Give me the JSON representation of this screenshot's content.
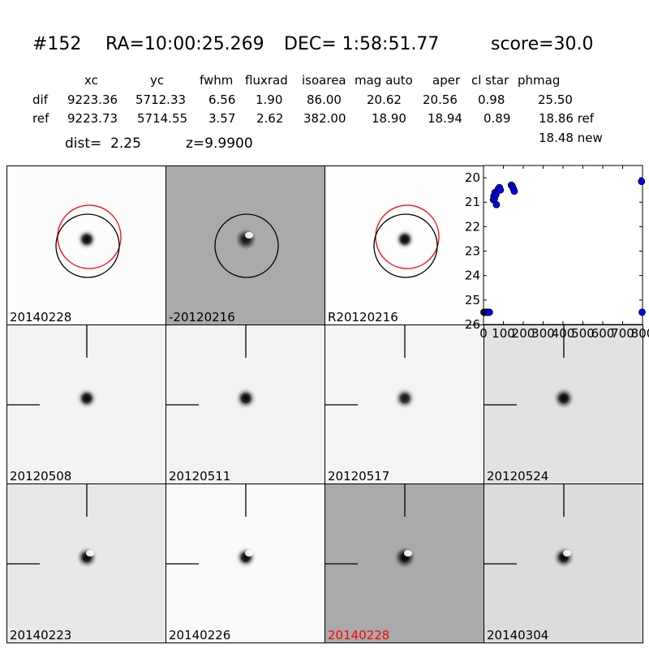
{
  "header": {
    "id": "#152",
    "ra": "RA=10:00:25.269",
    "dec": "DEC= 1:58:51.77",
    "score": "score=30.0"
  },
  "table": {
    "columns": [
      "xc",
      "yc",
      "fwhm",
      "fluxrad",
      "isoarea",
      "mag auto",
      "aper",
      "cl star",
      "phmag"
    ],
    "dif": {
      "label": "dif",
      "values": [
        "9223.36",
        "5712.33",
        "6.56",
        "1.90",
        "86.00",
        "20.62",
        "20.56",
        "0.98",
        "25.50"
      ]
    },
    "ref": {
      "label": "ref",
      "values": [
        "9223.73",
        "5714.55",
        "3.57",
        "2.62",
        "382.00",
        "18.90",
        "18.94",
        "0.89",
        "18.86 ref"
      ]
    },
    "extra": "18.48 new"
  },
  "dist": "dist=  2.25",
  "z": "z=9.9900",
  "stamps": [
    {
      "label": "20140228",
      "bg": "#fcfcfc",
      "core": "#000000",
      "halo": "#c8c8c8",
      "dipole": false,
      "circles": [
        "red",
        "black"
      ],
      "ticks": false,
      "highlight": false
    },
    {
      "label": "-20120216",
      "bg": "#aaaaaa",
      "core": "#111111",
      "halo": "#555555",
      "dipole": true,
      "circles": [
        "black"
      ],
      "ticks": false,
      "highlight": false
    },
    {
      "label": "R20120216",
      "bg": "#fdfdfd",
      "core": "#000000",
      "halo": "#d0d0d0",
      "dipole": false,
      "circles": [
        "red",
        "black"
      ],
      "ticks": false,
      "highlight": false
    },
    {
      "label": "20120508",
      "bg": "#f3f3f3",
      "core": "#000000",
      "halo": "#b8b8b8",
      "dipole": false,
      "circles": [],
      "ticks": true,
      "highlight": false
    },
    {
      "label": "20120511",
      "bg": "#f2f2f2",
      "core": "#000000",
      "halo": "#a8a8a8",
      "dipole": false,
      "circles": [],
      "ticks": true,
      "highlight": false
    },
    {
      "label": "20120517",
      "bg": "#f4f4f4",
      "core": "#111111",
      "halo": "#b0b0b0",
      "dipole": false,
      "circles": [],
      "ticks": true,
      "highlight": false
    },
    {
      "label": "20120524",
      "bg": "#e2e2e2",
      "core": "#000000",
      "halo": "#8a8a8a",
      "dipole": false,
      "circles": [],
      "ticks": true,
      "highlight": false
    },
    {
      "label": "20140223",
      "bg": "#e8e8e8",
      "core": "#000000",
      "halo": "#999999",
      "dipole": true,
      "circles": [],
      "ticks": true,
      "highlight": false
    },
    {
      "label": "20140226",
      "bg": "#fafafa",
      "core": "#000000",
      "halo": "#bdbdbd",
      "dipole": true,
      "circles": [],
      "ticks": true,
      "highlight": false
    },
    {
      "label": "20140228",
      "bg": "#aaaaaa",
      "core": "#000000",
      "halo": "#555555",
      "dipole": true,
      "circles": [],
      "ticks": true,
      "highlight": true
    },
    {
      "label": "20140304",
      "bg": "#dcdcdc",
      "core": "#000000",
      "halo": "#8f8f8f",
      "dipole": true,
      "circles": [],
      "ticks": true,
      "highlight": false
    }
  ],
  "chart_data": {
    "type": "scatter",
    "xlim": [
      0,
      800
    ],
    "ylim": [
      26,
      19.5
    ],
    "y_inverted": true,
    "xticks": [
      0,
      100,
      200,
      300,
      400,
      500,
      600,
      700,
      800
    ],
    "xtick_labels": [
      "0",
      "100",
      "200",
      "300",
      "400",
      "500",
      "600",
      "700",
      "800"
    ],
    "yticks": [
      20,
      21,
      22,
      23,
      24,
      25,
      26
    ],
    "ytick_labels": [
      "20",
      "21",
      "22",
      "23",
      "24",
      "25",
      "26"
    ],
    "marker_color": "#0000ff",
    "x": [
      2,
      6,
      10,
      15,
      20,
      25,
      30,
      50,
      52,
      55,
      58,
      62,
      65,
      70,
      75,
      80,
      85,
      140,
      145,
      150,
      155,
      795,
      798
    ],
    "y": [
      25.5,
      25.5,
      25.5,
      25.5,
      25.5,
      25.5,
      25.5,
      20.9,
      20.75,
      20.85,
      20.6,
      20.7,
      21.1,
      20.55,
      20.45,
      20.4,
      20.5,
      20.3,
      20.35,
      20.45,
      20.55,
      20.15,
      25.5
    ]
  }
}
